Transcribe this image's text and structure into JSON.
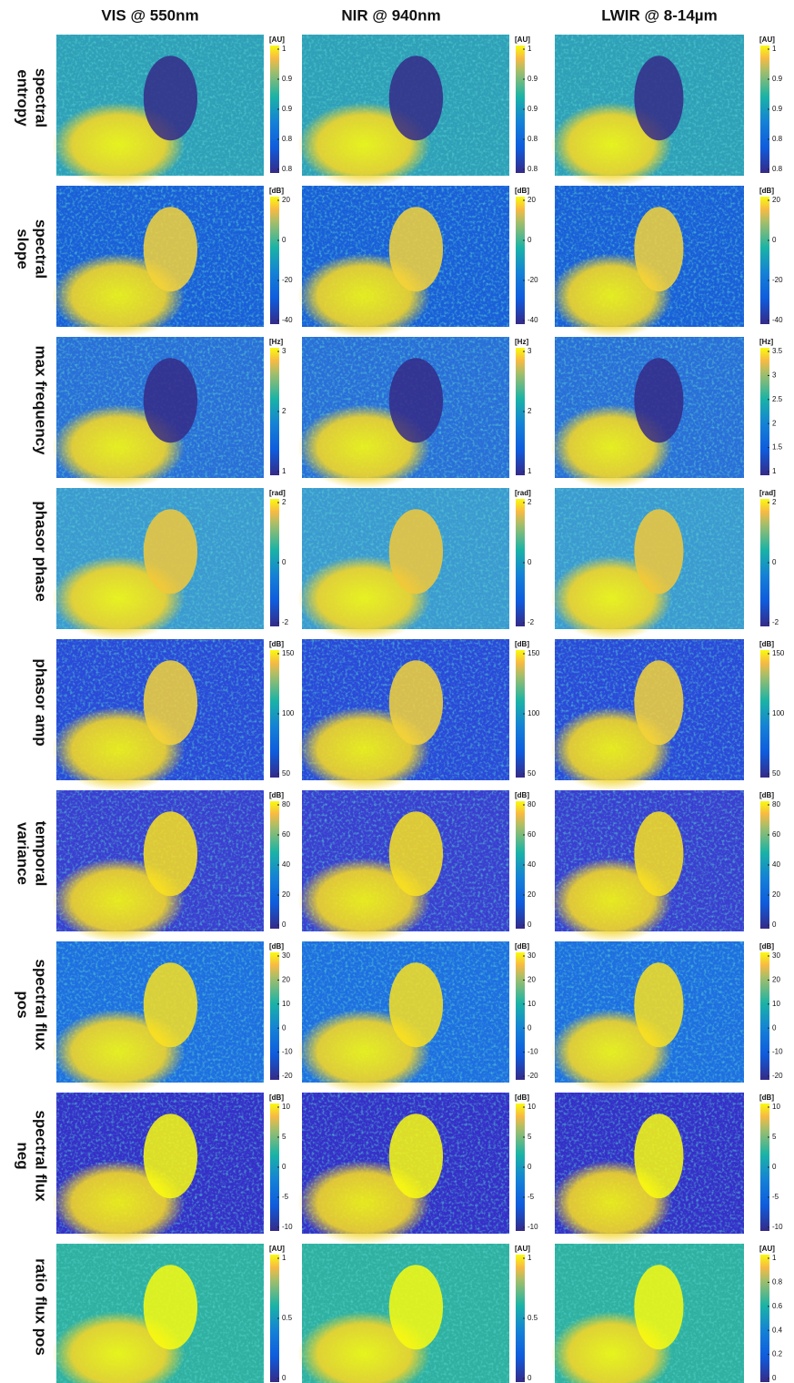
{
  "columns": [
    "VIS @ 550nm",
    "NIR @ 940nm",
    "LWIR @ 8-14µm"
  ],
  "rows": [
    {
      "label": [
        "spectral",
        "entropy"
      ],
      "colorbars": [
        {
          "unit": "[AU]",
          "ticks": [
            "1",
            "0.9",
            "0.9",
            "0.8",
            "0.8"
          ]
        },
        {
          "unit": "[AU]",
          "ticks": [
            "1",
            "0.9",
            "0.9",
            "0.8",
            "0.8"
          ]
        },
        {
          "unit": "[AU]",
          "ticks": [
            "1",
            "0.9",
            "0.9",
            "0.8",
            "0.8"
          ]
        }
      ]
    },
    {
      "label": [
        "spectral",
        "slope"
      ],
      "colorbars": [
        {
          "unit": "[dB]",
          "ticks": [
            "20",
            "0",
            "-20",
            "-40"
          ]
        },
        {
          "unit": "[dB]",
          "ticks": [
            "20",
            "0",
            "-20",
            "-40"
          ]
        },
        {
          "unit": "[dB]",
          "ticks": [
            "20",
            "0",
            "-20",
            "-40"
          ]
        }
      ]
    },
    {
      "label": [
        "max frequency"
      ],
      "colorbars": [
        {
          "unit": "[Hz]",
          "ticks": [
            "3",
            "2",
            "1"
          ]
        },
        {
          "unit": "[Hz]",
          "ticks": [
            "3",
            "2",
            "1"
          ]
        },
        {
          "unit": "[Hz]",
          "ticks": [
            "3.5",
            "3",
            "2.5",
            "2",
            "1.5",
            "1"
          ]
        }
      ]
    },
    {
      "label": [
        "phasor phase"
      ],
      "colorbars": [
        {
          "unit": "[rad]",
          "ticks": [
            "2",
            "0",
            "-2"
          ]
        },
        {
          "unit": "[rad]",
          "ticks": [
            "2",
            "0",
            "-2"
          ]
        },
        {
          "unit": "[rad]",
          "ticks": [
            "2",
            "0",
            "-2"
          ]
        }
      ]
    },
    {
      "label": [
        "phasor amp"
      ],
      "colorbars": [
        {
          "unit": "[dB]",
          "ticks": [
            "150",
            "100",
            "50"
          ]
        },
        {
          "unit": "[dB]",
          "ticks": [
            "150",
            "100",
            "50"
          ]
        },
        {
          "unit": "[dB]",
          "ticks": [
            "150",
            "100",
            "50"
          ]
        }
      ]
    },
    {
      "label": [
        "temporal",
        "variance"
      ],
      "colorbars": [
        {
          "unit": "[dB]",
          "ticks": [
            "80",
            "60",
            "40",
            "20",
            "0"
          ]
        },
        {
          "unit": "[dB]",
          "ticks": [
            "80",
            "60",
            "40",
            "20",
            "0"
          ]
        },
        {
          "unit": "[dB]",
          "ticks": [
            "80",
            "60",
            "40",
            "20",
            "0"
          ]
        }
      ]
    },
    {
      "label": [
        "spectral flux",
        "pos"
      ],
      "colorbars": [
        {
          "unit": "[dB]",
          "ticks": [
            "30",
            "20",
            "10",
            "0",
            "-10",
            "-20"
          ]
        },
        {
          "unit": "[dB]",
          "ticks": [
            "30",
            "20",
            "10",
            "0",
            "-10",
            "-20"
          ]
        },
        {
          "unit": "[dB]",
          "ticks": [
            "30",
            "20",
            "10",
            "0",
            "-10",
            "-20"
          ]
        }
      ]
    },
    {
      "label": [
        "spectral flux",
        "neg"
      ],
      "colorbars": [
        {
          "unit": "[dB]",
          "ticks": [
            "10",
            "5",
            "0",
            "-5",
            "-10"
          ]
        },
        {
          "unit": "[dB]",
          "ticks": [
            "10",
            "5",
            "0",
            "-5",
            "-10"
          ]
        },
        {
          "unit": "[dB]",
          "ticks": [
            "10",
            "5",
            "0",
            "-5",
            "-10"
          ]
        }
      ]
    },
    {
      "label": [
        "ratio flux pos"
      ],
      "colorbars": [
        {
          "unit": "[AU]",
          "ticks": [
            "1",
            "0.5",
            "0"
          ]
        },
        {
          "unit": "[AU]",
          "ticks": [
            "1",
            "0.5",
            "0"
          ]
        },
        {
          "unit": "[AU]",
          "ticks": [
            "1",
            "0.8",
            "0.6",
            "0.4",
            "0.2",
            "0"
          ]
        }
      ]
    }
  ]
}
